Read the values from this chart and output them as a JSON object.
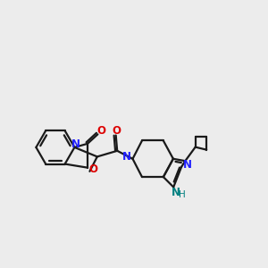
{
  "background_color": "#ececec",
  "bond_color": "#1a1a1a",
  "nitrogen_color": "#2020ff",
  "oxygen_color": "#dd0000",
  "teal_color": "#008080",
  "line_width": 1.6,
  "figsize": [
    3.0,
    3.0
  ],
  "dpi": 100,
  "xlim": [
    0.0,
    10.0
  ],
  "ylim": [
    2.5,
    9.5
  ]
}
